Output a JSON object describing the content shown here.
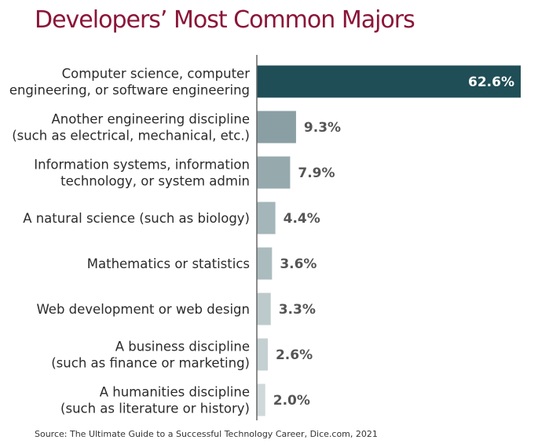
{
  "chart_data": {
    "type": "bar",
    "orientation": "horizontal",
    "title": "Developers’ Most Common Majors",
    "xlabel": "",
    "ylabel": "",
    "xlim": [
      0,
      62.6
    ],
    "grid": false,
    "categories": [
      [
        "Computer science, computer",
        "engineering, or software engineering"
      ],
      [
        "Another engineering discipline",
        "(such as electrical, mechanical, etc.)"
      ],
      [
        "Information systems, information",
        "technology, or system admin"
      ],
      [
        "A natural science (such as biology)"
      ],
      [
        "Mathematics or statistics"
      ],
      [
        "Web development or web design"
      ],
      [
        "A business discipline",
        "(such as finance or marketing)"
      ],
      [
        "A humanities discipline",
        "(such as literature or history)"
      ]
    ],
    "values": [
      62.6,
      9.3,
      7.9,
      4.4,
      3.6,
      3.3,
      2.6,
      2.0
    ],
    "value_labels": [
      "62.6%",
      "9.3%",
      "7.9%",
      "4.4%",
      "3.6%",
      "3.3%",
      "2.6%",
      "2.0%"
    ],
    "bar_colors": [
      "#1f4e57",
      "#8a9fa3",
      "#96aaad",
      "#a4b6b9",
      "#abbcbe",
      "#bccacc",
      "#c4d0d2",
      "#cfd9da"
    ],
    "value_label_colors": [
      "#ffffff",
      "#555555",
      "#555555",
      "#555555",
      "#555555",
      "#555555",
      "#555555",
      "#555555"
    ],
    "axis_color": "#666666"
  },
  "source": "Source: The Ultimate Guide to a Successful Technology Career, Dice.com, 2021"
}
